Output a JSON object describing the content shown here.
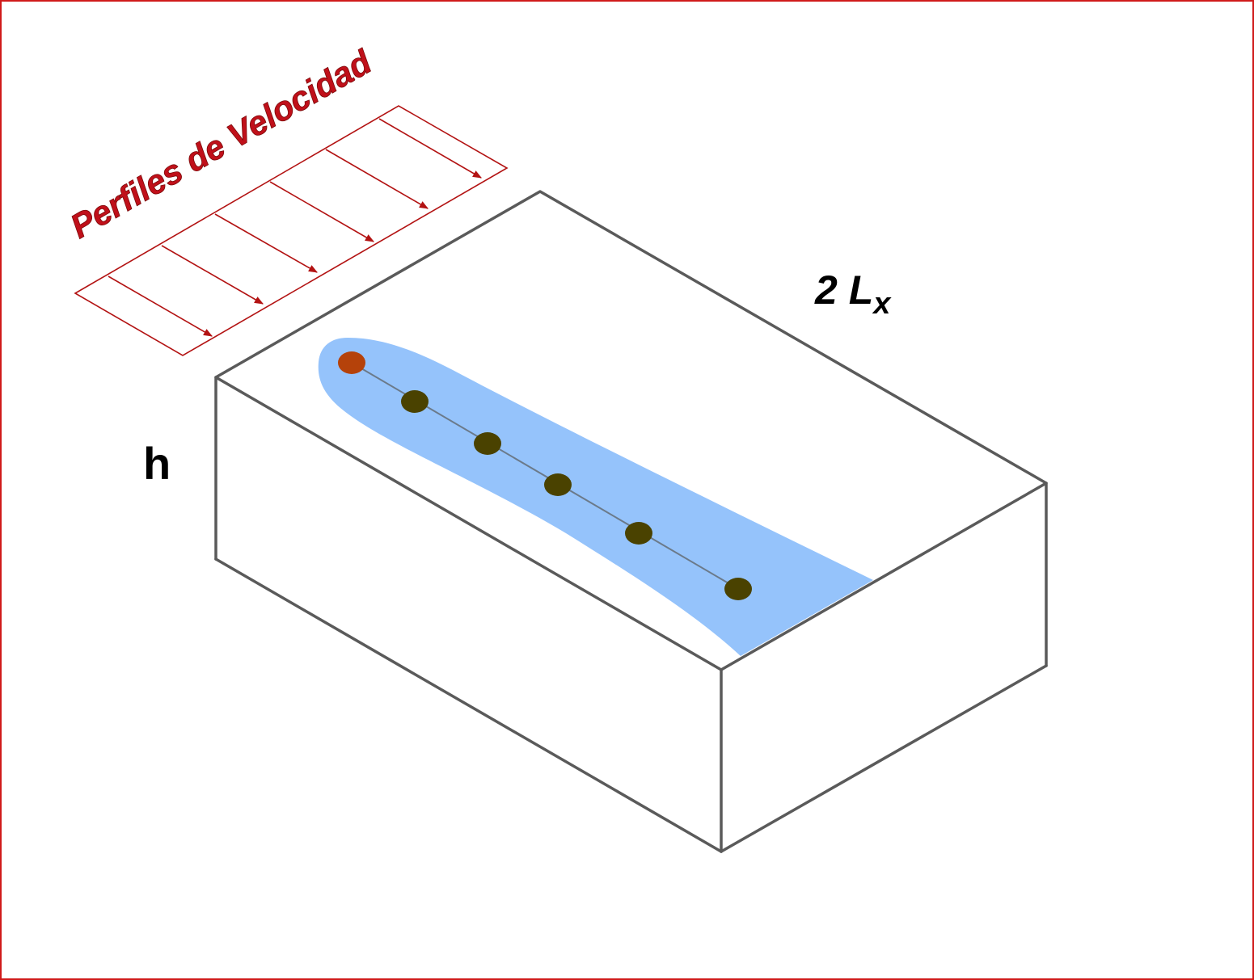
{
  "diagram": {
    "title": "Perfiles de Velocidad",
    "length_label_main": "2 L",
    "length_label_sub": "x",
    "height_label": "h"
  },
  "colors": {
    "frame": "#d01a1a",
    "profile_lines": "#b31313",
    "box_edges": "#5a5a5a",
    "plume": "#95c3fb",
    "source_point": "#b5420a",
    "sample_points": "#4a4200"
  }
}
